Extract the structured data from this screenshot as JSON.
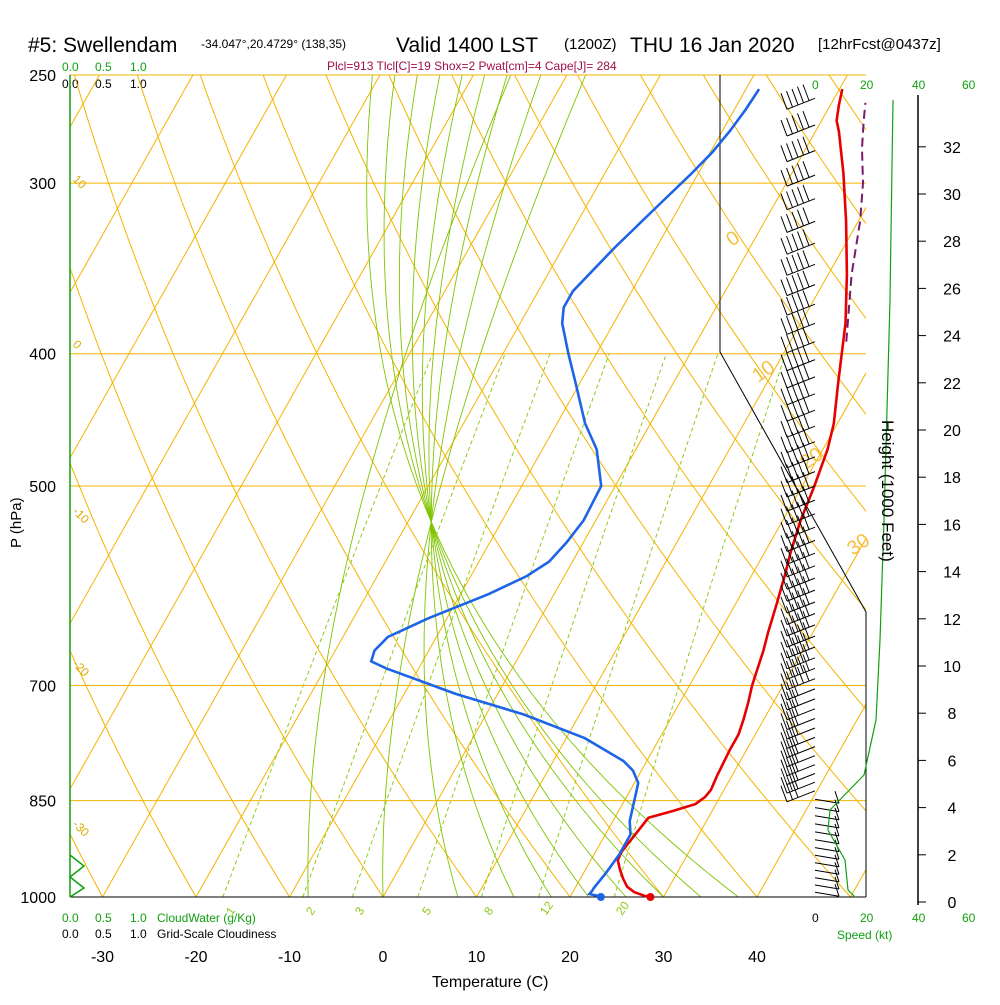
{
  "header": {
    "station": "#5: Swellendam",
    "coords": "-34.047°,20.4729° (138,35)",
    "valid": "Valid 1400 LST",
    "valid_z": "(1200Z)",
    "date": "THU 16 Jan 2020",
    "forecast": "[12hrFcst@0437z]"
  },
  "indices": "Plcl=913 Tlcl[C]=19 Shox=2 Pwat[cm]=4 Cape[J]= 284",
  "cloud_scale_top": {
    "green": [
      "0.0",
      "0.5",
      "1.0"
    ],
    "black": [
      "0.0",
      "0.5",
      "1.0"
    ]
  },
  "cloud_scale_bottom": {
    "green": [
      "0.0",
      "0.5",
      "1.0"
    ],
    "black": [
      "0.0",
      "0.5",
      "1.0"
    ],
    "cloudwater_label": "CloudWater (g/Kg)",
    "cloudiness_label": "Grid-Scale Cloudiness"
  },
  "speed_scale": {
    "green": [
      "0",
      "20",
      "40",
      "60"
    ],
    "black": [
      "0",
      "20",
      "40",
      "60"
    ],
    "label": "Speed (kt)"
  },
  "colors": {
    "isobar": "#f5b400",
    "dry_adiabat": "#7fc400",
    "mixing_ratio": "#8ccc18",
    "temperature": "#e60000",
    "dewpoint": "#1e64e6",
    "parcel": "#7a1a6e",
    "green_text": "#10a010",
    "indices_text": "#a0104a",
    "theta_label": "#ddaa00"
  },
  "chart_data": {
    "type": "line",
    "title": "#5: Swellendam Valid 1400 LST (1200Z) THU 16 Jan 2020",
    "xlabel": "Temperature (C)",
    "ylabel": "P (hPa)",
    "y2label": "Height (1000 Feet)",
    "x_ticks": [
      "-30",
      "-20",
      "-10",
      "0",
      "10",
      "20",
      "30",
      "40"
    ],
    "y_ticks": [
      "250",
      "300",
      "400",
      "500",
      "700",
      "850",
      "1000"
    ],
    "height_ticks": [
      "0",
      "2",
      "4",
      "6",
      "8",
      "10",
      "12",
      "14",
      "16",
      "18",
      "20",
      "22",
      "24",
      "26",
      "28",
      "30",
      "32"
    ],
    "mixing_ratio_labels": [
      "1",
      "2",
      "3",
      "5",
      "8",
      "12",
      "20"
    ],
    "temp_iso_labels": [
      "10",
      "0",
      "-10",
      "-20",
      "-30",
      "0",
      "10",
      "20",
      "30"
    ],
    "series": [
      {
        "key": "temperature",
        "points": [
          [
            28.6,
            1000
          ],
          [
            27.9,
            998
          ],
          [
            26.6,
            992
          ],
          [
            25.5,
            983
          ],
          [
            24.6,
            970
          ],
          [
            23.7,
            955
          ],
          [
            22.9,
            940
          ],
          [
            22.8,
            930
          ],
          [
            22.8,
            925
          ],
          [
            23.6,
            875
          ],
          [
            25.8,
            865
          ],
          [
            27.8,
            855
          ],
          [
            28.4,
            845
          ],
          [
            28.6,
            835
          ],
          [
            28.4,
            815
          ],
          [
            28.2,
            780
          ],
          [
            28.2,
            760
          ],
          [
            27.8,
            740
          ],
          [
            27.3,
            720
          ],
          [
            26.7,
            700
          ],
          [
            25.8,
            660
          ],
          [
            25.2,
            640
          ],
          [
            24.4,
            610
          ],
          [
            23.5,
            580
          ],
          [
            22.8,
            560
          ],
          [
            21.9,
            530
          ],
          [
            21.3,
            500
          ],
          [
            20.5,
            470
          ],
          [
            19.6,
            450
          ],
          [
            17.6,
            420
          ],
          [
            14.8,
            380
          ],
          [
            12.0,
            350
          ],
          [
            8.7,
            320
          ],
          [
            5.5,
            295
          ],
          [
            2.5,
            275
          ],
          [
            1.6,
            270
          ],
          [
            0.9,
            263
          ],
          [
            0.3,
            256
          ]
        ]
      },
      {
        "key": "dewpoint",
        "points": [
          [
            23.3,
            1000
          ],
          [
            22.9,
            998
          ],
          [
            21.9,
            995
          ],
          [
            22.0,
            990
          ],
          [
            22.0,
            985
          ],
          [
            22.4,
            960
          ],
          [
            22.7,
            930
          ],
          [
            22.7,
            915
          ],
          [
            22.7,
            900
          ],
          [
            21.8,
            880
          ],
          [
            21.3,
            860
          ],
          [
            20.8,
            840
          ],
          [
            20.4,
            825
          ],
          [
            19.1,
            808
          ],
          [
            17.5,
            795
          ],
          [
            12.0,
            765
          ],
          [
            4.0,
            735
          ],
          [
            -4.5,
            710
          ],
          [
            -13.5,
            680
          ],
          [
            -15.5,
            672
          ],
          [
            -15.8,
            660
          ],
          [
            -15.2,
            645
          ],
          [
            -12.0,
            625
          ],
          [
            -7.0,
            600
          ],
          [
            -4.0,
            582
          ],
          [
            -2.5,
            568
          ],
          [
            -1.8,
            550
          ],
          [
            -1.3,
            530
          ],
          [
            -1.5,
            500
          ],
          [
            -4.2,
            470
          ],
          [
            -7.0,
            450
          ],
          [
            -10.5,
            420
          ],
          [
            -13.0,
            400
          ],
          [
            -15.5,
            380
          ],
          [
            -16.3,
            370
          ],
          [
            -16.3,
            360
          ],
          [
            -14.5,
            335
          ],
          [
            -12.2,
            310
          ],
          [
            -10.8,
            296
          ],
          [
            -9.8,
            285
          ],
          [
            -9.2,
            275
          ],
          [
            -8.8,
            265
          ],
          [
            -8.6,
            256
          ]
        ]
      },
      {
        "key": "parcel",
        "points": [
          [
            16.0,
            392
          ],
          [
            12.5,
            350
          ],
          [
            10.2,
            320
          ],
          [
            8.2,
            300
          ],
          [
            6.0,
            283
          ],
          [
            4.5,
            270
          ],
          [
            3.6,
            262
          ]
        ]
      }
    ],
    "surface_points": {
      "temperature": [
        28.6,
        1000
      ],
      "dewpoint": [
        23.3,
        1000
      ]
    }
  }
}
